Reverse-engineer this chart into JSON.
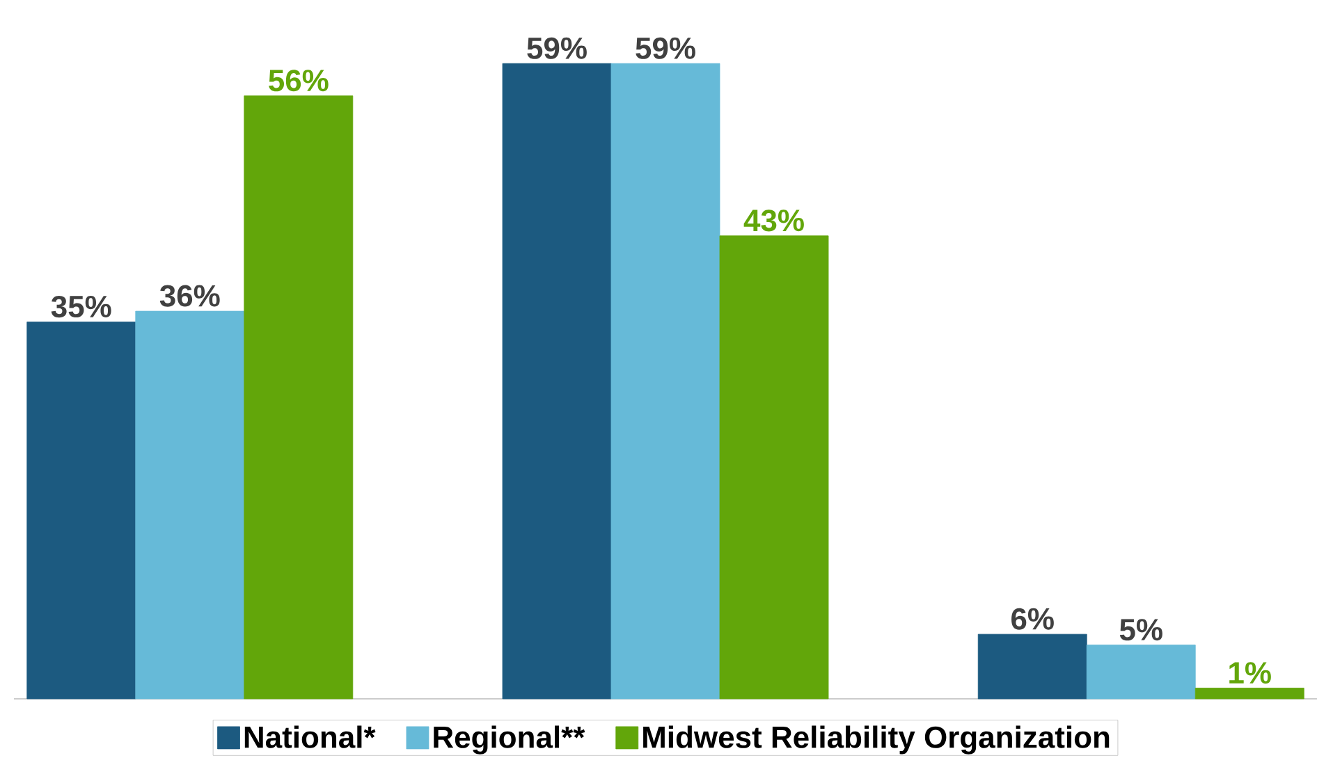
{
  "chart_data": {
    "type": "bar",
    "categories": [
      null,
      null,
      null
    ],
    "data_labels": true,
    "legend": "bottom",
    "series": [
      {
        "name": "National*",
        "color": "#1c5a80",
        "values": [
          35,
          59,
          6
        ],
        "value_labels": [
          "35%",
          "59%",
          "6%"
        ]
      },
      {
        "name": "Regional**",
        "color": "#66bad8",
        "values": [
          36,
          59,
          5
        ],
        "value_labels": [
          "36%",
          "59%",
          "5%"
        ]
      },
      {
        "name": "Midwest Reliability Organization",
        "color": "#62a60a",
        "values": [
          56,
          43,
          1
        ],
        "value_labels": [
          "56%",
          "43%",
          "1%"
        ]
      }
    ]
  }
}
